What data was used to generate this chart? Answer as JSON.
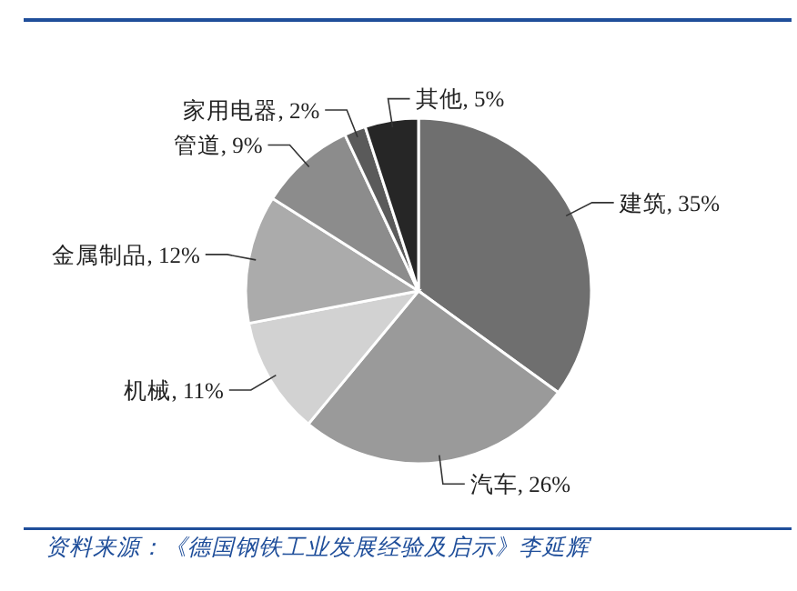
{
  "chart_data": {
    "type": "pie",
    "categories": [
      "建筑",
      "汽车",
      "机械",
      "金属制品",
      "管道",
      "家用电器",
      "其他"
    ],
    "values": [
      35,
      26,
      11,
      12,
      9,
      2,
      5
    ],
    "value_labels": [
      "35%",
      "26%",
      "11%",
      "12%",
      "9%",
      "2%",
      "5%"
    ],
    "colors": [
      "#6f6f6f",
      "#9a9a9a",
      "#d2d2d2",
      "#ababab",
      "#8c8c8c",
      "#5a5a5a",
      "#262626"
    ],
    "annotations": [
      "资料来源：《德国钢铁工业发展经验及启示》李延辉"
    ]
  }
}
